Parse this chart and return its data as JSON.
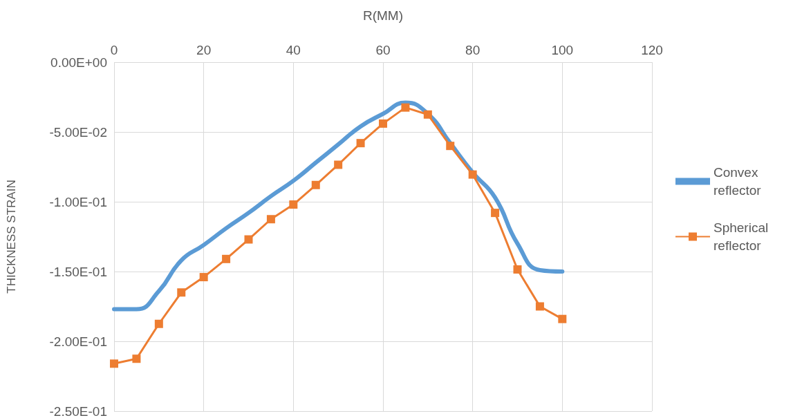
{
  "chart_data": {
    "type": "line",
    "xlabel": "R(MM)",
    "ylabel": "THICKNESS STRAIN",
    "x": [
      0,
      5,
      10,
      15,
      20,
      25,
      30,
      35,
      40,
      45,
      50,
      55,
      60,
      65,
      70,
      75,
      80,
      85,
      90,
      95,
      100
    ],
    "series": [
      {
        "name": "Convex reflector",
        "color": "#5b9bd5",
        "marker": "none",
        "values": [
          -0.177,
          -0.177,
          -0.164,
          -0.142,
          -0.131,
          -0.119,
          -0.108,
          -0.096,
          -0.085,
          -0.072,
          -0.059,
          -0.046,
          -0.037,
          -0.029,
          -0.037,
          -0.058,
          -0.079,
          -0.097,
          -0.13,
          -0.149,
          -0.15
        ]
      },
      {
        "name": "Spherical reflector",
        "color": "#ed7d31",
        "marker": "square",
        "values": [
          -0.216,
          -0.2125,
          -0.1875,
          -0.165,
          -0.154,
          -0.141,
          -0.127,
          -0.1125,
          -0.102,
          -0.088,
          -0.0735,
          -0.058,
          -0.044,
          -0.0325,
          -0.0375,
          -0.06,
          -0.0805,
          -0.108,
          -0.1485,
          -0.175,
          -0.184
        ]
      }
    ],
    "xlim": [
      0,
      120
    ],
    "xticks": [
      0,
      20,
      40,
      60,
      80,
      100,
      120
    ],
    "ylim": [
      -0.25,
      0
    ],
    "yticks": [
      {
        "value": -0.25,
        "label": "-2.50E-01"
      },
      {
        "value": -0.2,
        "label": "-2.00E-01"
      },
      {
        "value": -0.15,
        "label": "-1.50E-01"
      },
      {
        "value": -0.1,
        "label": "-1.00E-01"
      },
      {
        "value": -0.05,
        "label": "-5.00E-02"
      },
      {
        "value": 0,
        "label": "0.00E+00"
      }
    ],
    "grid": true,
    "legend": "right",
    "line_style": "solid"
  }
}
